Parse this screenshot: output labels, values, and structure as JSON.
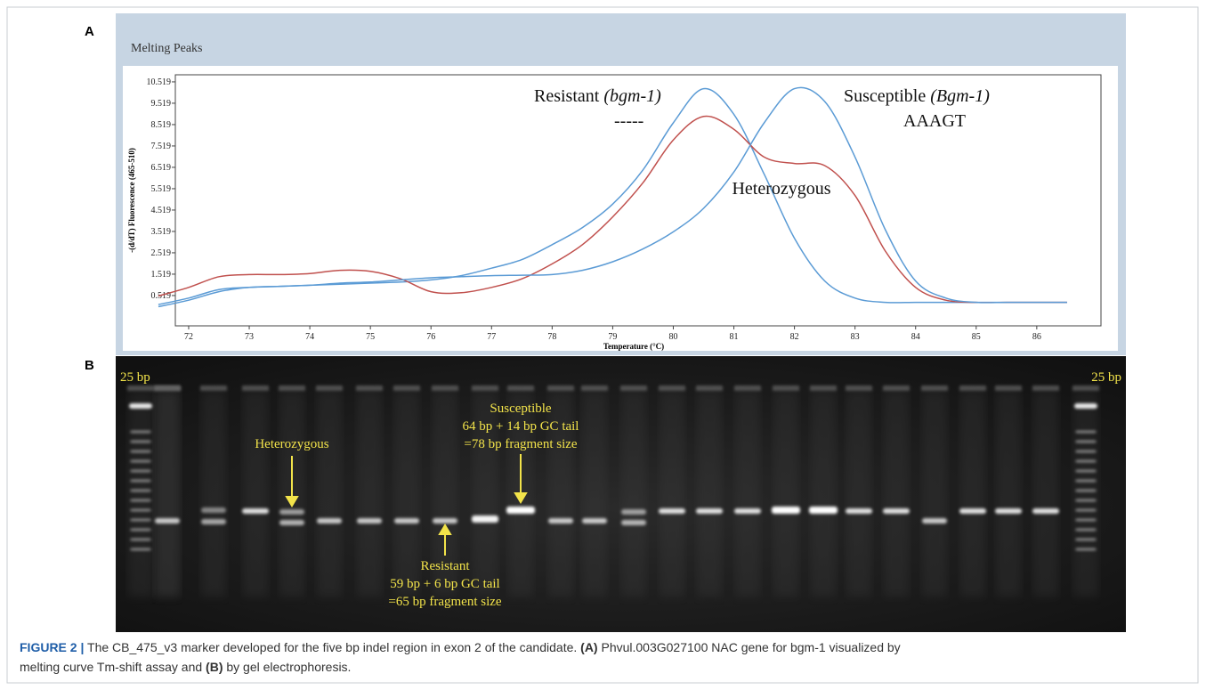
{
  "figure": {
    "panel_a_label": "A",
    "panel_b_label": "B",
    "caption": {
      "label": "FIGURE 2 |",
      "text1": " The CB_475_v3 marker developed for the five bp indel region in exon 2 of the candidate. ",
      "part_a": "(A)",
      "text2": " Phvul.003G027100 NAC gene for bgm-1 visualized by",
      "text3": "melting curve Tm-shift assay and ",
      "part_b": "(B)",
      "text4": " by gel electrophoresis."
    }
  },
  "chart_data": {
    "type": "line",
    "title": "Melting Peaks",
    "ylabel": "-(d/dT) Fluorescence (465-510)",
    "xlabel": "Temperature (°C)",
    "xlim": [
      71.78,
      87.06
    ],
    "ylim": [
      -0.9,
      10.85
    ],
    "xticks": [
      72,
      73,
      74,
      75,
      76,
      77,
      78,
      79,
      80,
      81,
      82,
      83,
      84,
      85,
      86
    ],
    "yticks": [
      0.519,
      1.519,
      2.519,
      3.519,
      4.519,
      5.519,
      6.519,
      7.519,
      8.519,
      9.519,
      10.519
    ],
    "x": [
      71.5,
      72,
      72.5,
      73,
      73.5,
      74,
      74.5,
      75,
      75.5,
      76,
      76.5,
      77,
      77.5,
      78,
      78.5,
      79,
      79.5,
      80,
      80.5,
      81,
      81.5,
      82,
      82.5,
      83,
      83.5,
      84,
      84.5,
      85,
      85.5,
      86,
      86.5
    ],
    "series": [
      {
        "color": "#5b9bd5",
        "values": [
          0.1,
          0.4,
          0.8,
          0.9,
          0.95,
          1.0,
          1.05,
          1.1,
          1.15,
          1.25,
          1.45,
          1.8,
          2.2,
          2.9,
          3.7,
          4.8,
          6.4,
          8.6,
          10.2,
          9.0,
          6.2,
          3.2,
          1.2,
          0.4,
          0.2,
          0.2,
          0.2,
          0.2,
          0.2,
          0.2,
          0.2
        ]
      },
      {
        "color": "#c0504d",
        "values": [
          0.5,
          0.9,
          1.4,
          1.5,
          1.5,
          1.55,
          1.7,
          1.65,
          1.3,
          0.7,
          0.65,
          0.9,
          1.3,
          2.0,
          2.9,
          4.2,
          5.8,
          7.8,
          8.9,
          8.3,
          7.0,
          6.7,
          6.6,
          5.2,
          2.6,
          0.9,
          0.3,
          0.2,
          0.2,
          0.2,
          0.2
        ]
      },
      {
        "color": "#5b9bd5",
        "values": [
          0.0,
          0.3,
          0.7,
          0.9,
          0.95,
          1.0,
          1.1,
          1.15,
          1.25,
          1.35,
          1.4,
          1.45,
          1.47,
          1.5,
          1.7,
          2.1,
          2.7,
          3.5,
          4.6,
          6.3,
          8.6,
          10.2,
          9.6,
          7.0,
          3.6,
          1.2,
          0.4,
          0.2,
          0.2,
          0.2,
          0.2
        ]
      }
    ],
    "annotations": {
      "resistant": "Resistant ",
      "resistant_allele": "(bgm-1)",
      "resistant_seq": "-----",
      "susceptible": "Susceptible ",
      "susceptible_allele": "(Bgm-1)",
      "susceptible_seq": "AAAGT",
      "heterozygous": "Heterozygous"
    }
  },
  "gel": {
    "ladder_left": "25 bp",
    "ladder_right": "25 bp",
    "heterozygous": "Heterozygous",
    "susceptible": [
      "Susceptible",
      "64 bp + 14 bp GC tail",
      "=78 bp fragment size"
    ],
    "resistant": [
      "Resistant",
      "59 bp + 6 bp GC tail",
      "=65 bp fragment size"
    ]
  }
}
